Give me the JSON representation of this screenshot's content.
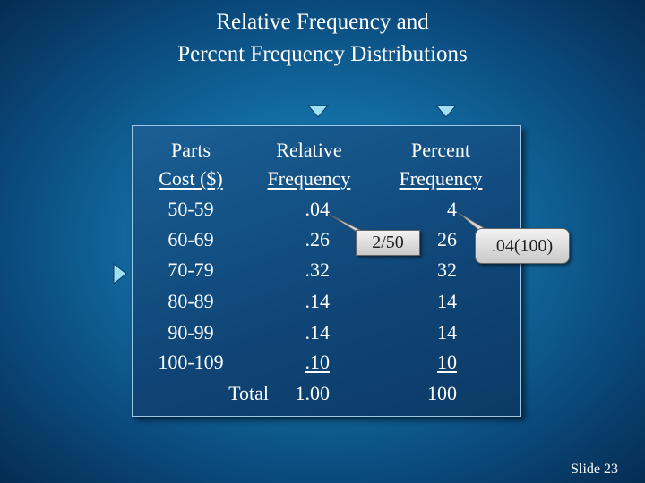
{
  "title": [
    "Relative Frequency and",
    "Percent Frequency Distributions"
  ],
  "table": {
    "header": [
      [
        "Parts",
        "Cost ($)"
      ],
      [
        "Relative",
        "Frequency"
      ],
      [
        "Percent",
        "Frequency"
      ]
    ],
    "rows": [
      [
        "50-59",
        ".04",
        "4"
      ],
      [
        "60-69",
        ".26",
        "26"
      ],
      [
        "70-79",
        ".32",
        "32"
      ],
      [
        "80-89",
        ".14",
        "14"
      ],
      [
        "90-99",
        ".14",
        "14"
      ],
      [
        "100-109",
        ".10",
        "10"
      ]
    ],
    "total": {
      "label": "Total",
      "relative": "1.00",
      "percent": "100"
    }
  },
  "callouts": [
    "2/50",
    ".04(100)"
  ],
  "footer": "Slide 23"
}
